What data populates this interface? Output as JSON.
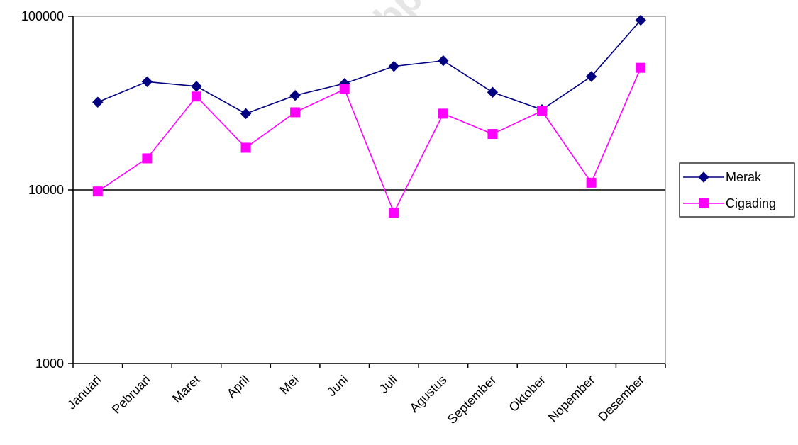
{
  "chart_data": {
    "type": "line",
    "categories": [
      "Januari",
      "Pebruari",
      "Maret",
      "April",
      "Mei",
      "Juni",
      "Juli",
      "Agustus",
      "September",
      "Oktober",
      "Nopember",
      "Desember"
    ],
    "series": [
      {
        "name": "Merak",
        "color": "#000080",
        "marker": "diamond",
        "values": [
          32000,
          42000,
          39500,
          27500,
          35000,
          41000,
          51500,
          55500,
          36500,
          29000,
          45000,
          95000
        ]
      },
      {
        "name": "Cigading",
        "color": "#ff00ff",
        "marker": "square",
        "values": [
          9800,
          15200,
          34500,
          17500,
          28000,
          38000,
          7400,
          27500,
          21000,
          28500,
          11000,
          50500
        ]
      }
    ],
    "y_scale": "log",
    "ylim": [
      1000,
      100000
    ],
    "y_ticks": [
      "1000",
      "10000",
      "100000"
    ],
    "gridlines": [
      10000
    ],
    "legend_position": "right",
    "watermark": "http://banten.bps.go.id"
  }
}
